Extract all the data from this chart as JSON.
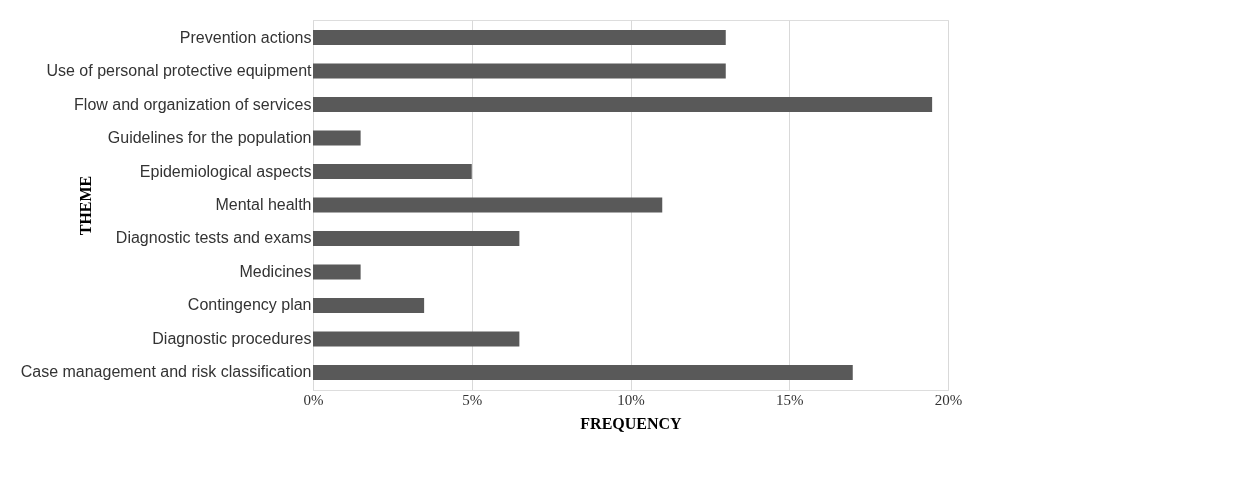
{
  "chart_data": {
    "type": "bar",
    "orientation": "horizontal",
    "xlabel": "FREQUENCY",
    "ylabel": "THEME",
    "categories": [
      "Prevention actions",
      "Use of personal protective equipment",
      "Flow and organization of services",
      "Guidelines for the population",
      "Epidemiological aspects",
      "Mental health",
      "Diagnostic tests and exams",
      "Medicines",
      "Contingency plan",
      "Diagnostic procedures",
      "Case management and risk classification"
    ],
    "values": [
      13,
      13,
      19.5,
      1.5,
      5,
      11,
      6.5,
      1.5,
      3.5,
      6.5,
      17
    ],
    "color": "#595959",
    "xlim": [
      0,
      20
    ],
    "xticks": [
      {
        "value": 0,
        "label": "0%"
      },
      {
        "value": 5,
        "label": "5%"
      },
      {
        "value": 10,
        "label": "10%"
      },
      {
        "value": 15,
        "label": "15%"
      },
      {
        "value": 20,
        "label": "20%"
      }
    ],
    "grid": "x"
  }
}
